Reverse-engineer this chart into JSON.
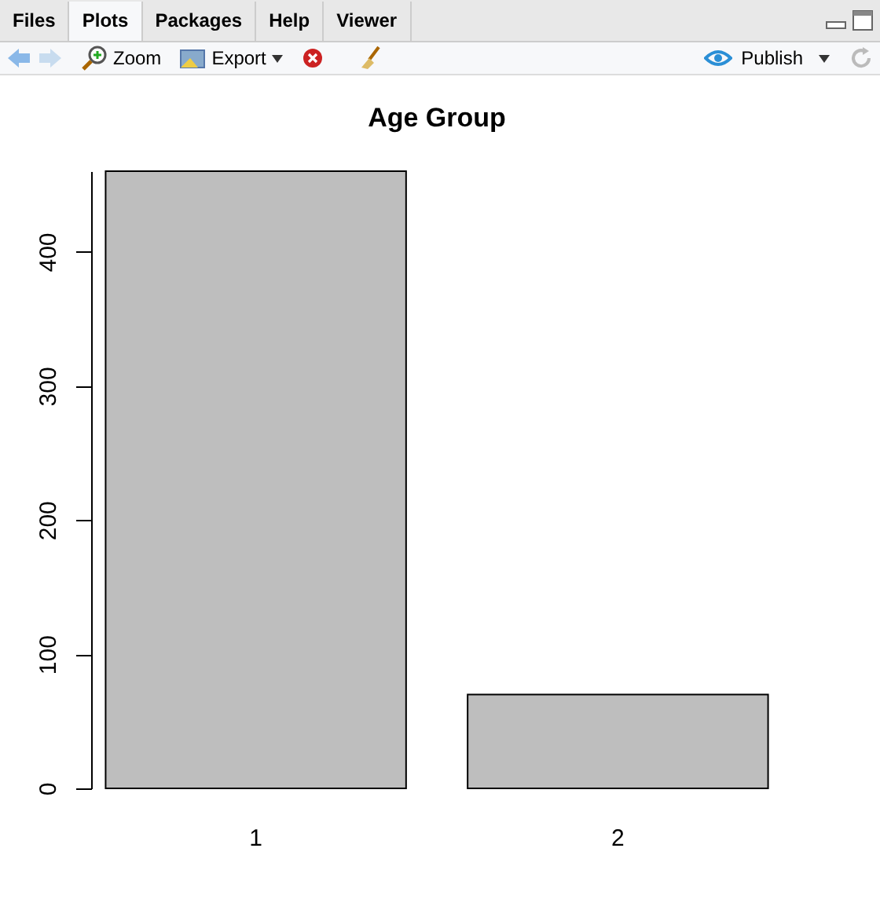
{
  "chart_data": {
    "type": "bar",
    "title": "Age Group",
    "categories": [
      "1",
      "2"
    ],
    "series": [
      {
        "color": "#bebebe",
        "values": [
          460,
          70
        ]
      }
    ],
    "ylim": [
      0,
      460
    ],
    "yticks": [
      0,
      100,
      200,
      300,
      400
    ],
    "annotations": [
      "Files",
      "Plots",
      "Packages",
      "Help",
      "Viewer",
      "Zoom",
      "Export",
      "Publish"
    ]
  }
}
